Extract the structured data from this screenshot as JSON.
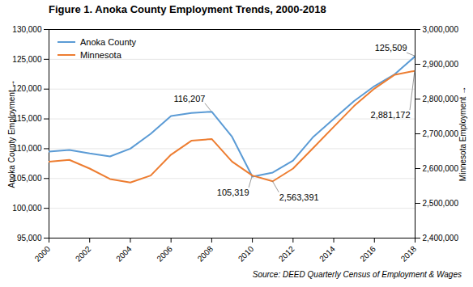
{
  "chart_data": {
    "type": "line",
    "title": "Figure 1. Anoka County Employment Trends, 2000-2018",
    "caption": "Source: DEED Quarterly Census of Employment & Wages",
    "ylabel": "Anoka County Employment",
    "y2label": "Minnesota Employment",
    "x": [
      2000,
      2001,
      2002,
      2003,
      2004,
      2005,
      2006,
      2007,
      2008,
      2009,
      2010,
      2011,
      2012,
      2013,
      2014,
      2015,
      2016,
      2017,
      2018
    ],
    "series": [
      {
        "name": "Anoka County",
        "color": "#5B9BD5",
        "values": [
          109500,
          109800,
          109200,
          108700,
          110000,
          112500,
          115500,
          116000,
          116207,
          112000,
          105319,
          106000,
          108000,
          112000,
          115000,
          118000,
          120500,
          122500,
          125509
        ]
      },
      {
        "name": "Minnesota",
        "color": "#ED7D31",
        "axis": "y2",
        "values": [
          2620000,
          2625000,
          2600000,
          2570000,
          2560000,
          2580000,
          2640000,
          2680000,
          2685000,
          2620000,
          2580000,
          2563391,
          2600000,
          2660000,
          2720000,
          2780000,
          2830000,
          2870000,
          2881172
        ]
      }
    ],
    "xlim": [
      2000,
      2018
    ],
    "xticks": [
      2000,
      2002,
      2004,
      2006,
      2008,
      2010,
      2012,
      2014,
      2016,
      2018
    ],
    "ylim": [
      95000,
      130000
    ],
    "yticks": [
      {
        "value": 95000,
        "label": "95,000"
      },
      {
        "value": 100000,
        "label": "100,000"
      },
      {
        "value": 105000,
        "label": "105,000"
      },
      {
        "value": 110000,
        "label": "110,000"
      },
      {
        "value": 115000,
        "label": "115,000"
      },
      {
        "value": 120000,
        "label": "120,000"
      },
      {
        "value": 125000,
        "label": "125,000"
      },
      {
        "value": 130000,
        "label": "130,000"
      }
    ],
    "y2lim": [
      2400000,
      3000000
    ],
    "y2ticks": [
      {
        "value": 2400000,
        "label": "2,400,000"
      },
      {
        "value": 2500000,
        "label": "2,500,000"
      },
      {
        "value": 2600000,
        "label": "2,600,000"
      },
      {
        "value": 2700000,
        "label": "2,700,000"
      },
      {
        "value": 2800000,
        "label": "2,800,000"
      },
      {
        "value": 2900000,
        "label": "2,900,000"
      },
      {
        "value": 3000000,
        "label": "3,000,000"
      }
    ],
    "annotations": [
      {
        "text": "116,207",
        "x": 2008,
        "y": 116207
      },
      {
        "text": "105,319",
        "x": 2010,
        "y": 105319
      },
      {
        "text": "125,509",
        "x": 2018,
        "y": 125509
      },
      {
        "text": "2,563,391",
        "x": 2011,
        "y": 2563391,
        "axis": "y2"
      },
      {
        "text": "2,881,172",
        "x": 2018,
        "y": 2881172,
        "axis": "y2"
      }
    ],
    "grid": true,
    "legend": "upper left"
  }
}
